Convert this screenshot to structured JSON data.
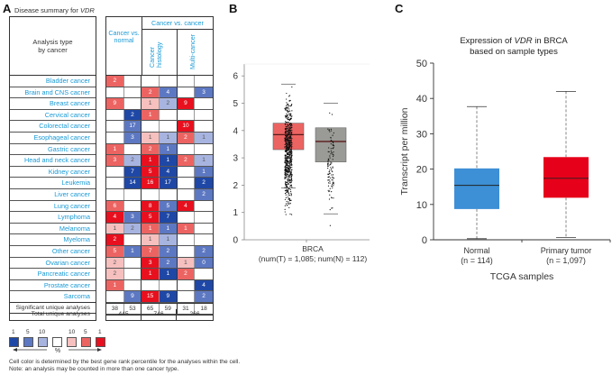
{
  "panels": {
    "a": "A",
    "b": "B",
    "c": "C"
  },
  "panelA": {
    "title_prefix": "Disease summary for ",
    "gene": "VDR",
    "header_left": "Analysis type by cancer",
    "header_cancer_vs_normal": "Cancer vs. normal",
    "header_cancer_vs_cancer": "Cancer vs. cancer",
    "header_cancer_histology": "Cancer histology",
    "header_multi_cancer": "Multi-cancer",
    "colors": {
      "up1": "#e8101e",
      "up5": "#ec6462",
      "up10": "#f6c0bf",
      "none": "#ffffff",
      "down10": "#a8b4e0",
      "down5": "#5d78c2",
      "down1": "#1f48a6"
    },
    "rows": [
      {
        "label": "Bladder cancer",
        "cells": [
          [
            "2",
            "up5"
          ],
          [
            "",
            ""
          ],
          [
            "",
            ""
          ],
          [
            "",
            ""
          ],
          [
            "",
            ""
          ],
          [
            "",
            ""
          ]
        ]
      },
      {
        "label": "Brain and CNS cacner",
        "cells": [
          [
            "",
            ""
          ],
          [
            "",
            ""
          ],
          [
            "2",
            "up5"
          ],
          [
            "4",
            "down5"
          ],
          [
            "",
            ""
          ],
          [
            "3",
            "down5"
          ]
        ]
      },
      {
        "label": "Breast cancer",
        "cells": [
          [
            "9",
            "up5"
          ],
          [
            "",
            ""
          ],
          [
            "1",
            "up10"
          ],
          [
            "2",
            "down10"
          ],
          [
            "9",
            "up1"
          ],
          [
            "",
            ""
          ]
        ]
      },
      {
        "label": "Cervical cancer",
        "cells": [
          [
            "",
            ""
          ],
          [
            "2",
            "down1"
          ],
          [
            "1",
            "up5"
          ],
          [
            "",
            ""
          ],
          [
            "",
            ""
          ],
          [
            "",
            ""
          ]
        ]
      },
      {
        "label": "Colorectal cancer",
        "cells": [
          [
            "",
            ""
          ],
          [
            "17",
            "down5"
          ],
          [
            "",
            ""
          ],
          [
            "",
            ""
          ],
          [
            "10",
            "up1"
          ],
          [
            "",
            ""
          ]
        ]
      },
      {
        "label": "Esophageal cancer",
        "cells": [
          [
            "",
            ""
          ],
          [
            "3",
            "down5"
          ],
          [
            "1",
            "up10"
          ],
          [
            "1",
            "down10"
          ],
          [
            "2",
            "up5"
          ],
          [
            "1",
            "down10"
          ]
        ]
      },
      {
        "label": "Gastric cancer",
        "cells": [
          [
            "1",
            "up5"
          ],
          [
            "",
            ""
          ],
          [
            "2",
            "up5"
          ],
          [
            "1",
            "down5"
          ],
          [
            "",
            ""
          ],
          [
            "",
            ""
          ]
        ]
      },
      {
        "label": "Head and neck cancer",
        "cells": [
          [
            "3",
            "up5"
          ],
          [
            "2",
            "down10"
          ],
          [
            "1",
            "up1"
          ],
          [
            "1",
            "down1"
          ],
          [
            "2",
            "up5"
          ],
          [
            "1",
            "down10"
          ]
        ]
      },
      {
        "label": "Kidney cancer",
        "cells": [
          [
            "",
            ""
          ],
          [
            "7",
            "down1"
          ],
          [
            "5",
            "up1"
          ],
          [
            "4",
            "down1"
          ],
          [
            "",
            ""
          ],
          [
            "1",
            "down5"
          ]
        ]
      },
      {
        "label": "Leukemia",
        "cells": [
          [
            "",
            ""
          ],
          [
            "14",
            "down1"
          ],
          [
            "16",
            "up1"
          ],
          [
            "17",
            "down1"
          ],
          [
            "",
            ""
          ],
          [
            "2",
            "down1"
          ]
        ]
      },
      {
        "label": "Liver cancer",
        "cells": [
          [
            "",
            ""
          ],
          [
            "",
            ""
          ],
          [
            "",
            ""
          ],
          [
            "",
            ""
          ],
          [
            "",
            ""
          ],
          [
            "2",
            "down5"
          ]
        ]
      },
      {
        "label": "Lung cancer",
        "cells": [
          [
            "6",
            "up5"
          ],
          [
            "",
            ""
          ],
          [
            "8",
            "up1"
          ],
          [
            "5",
            "down5"
          ],
          [
            "4",
            "up1"
          ],
          [
            "",
            ""
          ]
        ]
      },
      {
        "label": "Lymphoma",
        "cells": [
          [
            "4",
            "up1"
          ],
          [
            "3",
            "down5"
          ],
          [
            "5",
            "up1"
          ],
          [
            "7",
            "down1"
          ],
          [
            "",
            ""
          ],
          [
            "",
            ""
          ]
        ]
      },
      {
        "label": "Melanoma",
        "cells": [
          [
            "1",
            "up10"
          ],
          [
            "2",
            "down10"
          ],
          [
            "1",
            "up5"
          ],
          [
            "1",
            "down5"
          ],
          [
            "1",
            "up5"
          ],
          [
            "",
            ""
          ]
        ]
      },
      {
        "label": "Myeloma",
        "cells": [
          [
            "2",
            "up1"
          ],
          [
            "",
            ""
          ],
          [
            "1",
            "up10"
          ],
          [
            "1",
            "down10"
          ],
          [
            "",
            ""
          ],
          [
            "",
            ""
          ]
        ]
      },
      {
        "label": "Other cancer",
        "cells": [
          [
            "5",
            "up5"
          ],
          [
            "1",
            "down5"
          ],
          [
            "7",
            "up5"
          ],
          [
            "2",
            "down5"
          ],
          [
            "",
            ""
          ],
          [
            "2",
            "down5"
          ]
        ]
      },
      {
        "label": "Ovarian cancer",
        "cells": [
          [
            "2",
            "up10"
          ],
          [
            "",
            ""
          ],
          [
            "3",
            "up1"
          ],
          [
            "2",
            "down5"
          ],
          [
            "1",
            "up10"
          ],
          [
            "0",
            "down5"
          ]
        ]
      },
      {
        "label": "Pancreatic cancer",
        "cells": [
          [
            "2",
            "up10"
          ],
          [
            "",
            ""
          ],
          [
            "1",
            "up1"
          ],
          [
            "1",
            "down1"
          ],
          [
            "2",
            "up5"
          ],
          [
            "",
            ""
          ]
        ]
      },
      {
        "label": "Prostate cancer",
        "cells": [
          [
            "1",
            "up5"
          ],
          [
            "",
            ""
          ],
          [
            "",
            ""
          ],
          [
            "",
            ""
          ],
          [
            "",
            ""
          ],
          [
            "4",
            "down1"
          ]
        ]
      },
      {
        "label": "Sarcoma",
        "cells": [
          [
            "",
            ""
          ],
          [
            "9",
            "down5"
          ],
          [
            "15",
            "up1"
          ],
          [
            "9",
            "down1"
          ],
          [
            "",
            ""
          ],
          [
            "2",
            "down5"
          ]
        ]
      }
    ],
    "significant_label": "Significant unique analyses",
    "significant_values": [
      "38",
      "53",
      "65",
      "59",
      "31",
      "18"
    ],
    "total_label": "Total unique analyses",
    "total_values": [
      "445",
      "746",
      "266"
    ],
    "legend": {
      "labels": [
        "1",
        "5",
        "10",
        "10",
        "5",
        "1"
      ],
      "percent": "%",
      "swatches": [
        "down1",
        "down5",
        "down10",
        "none",
        "up10",
        "up5",
        "up1"
      ]
    },
    "footnote_1": "Cell color is determined by the best gene rank percentile for the analyses within the cell.",
    "footnote_2": "Note: an analysis may be counted in more than one cancer type."
  },
  "chart_data": [
    {
      "type": "box",
      "panel": "B",
      "title": "",
      "xlabel": "BRCA",
      "xlabel_sub": "(num(T) = 1,085; num(N) = 112)",
      "ylabel": "",
      "ylim": [
        0,
        6.3
      ],
      "yticks": [
        "0",
        "1",
        "2",
        "3",
        "4",
        "5",
        "6"
      ],
      "series": [
        {
          "name": "Tumor",
          "color": "#ec6462",
          "q1": 3.3,
          "median": 3.85,
          "q3": 4.27,
          "whisker_low": 1.9,
          "whisker_high": 5.7,
          "n": 1085
        },
        {
          "name": "Normal",
          "color": "#9a9a96",
          "q1": 2.85,
          "median": 3.6,
          "q3": 4.1,
          "whisker_low": 0.95,
          "whisker_high": 5.0,
          "n": 112
        }
      ]
    },
    {
      "type": "box",
      "panel": "C",
      "title_prefix": "Expression of ",
      "title_gene": "VDR",
      "title_suffix": " in BRCA",
      "title_line2": "based on sample types",
      "xlabel": "TCGA samples",
      "ylabel": "Transcript per million",
      "ylim": [
        0,
        50
      ],
      "yticks": [
        "0",
        "10",
        "20",
        "30",
        "40",
        "50"
      ],
      "categories": [
        "Normal",
        "Primary tumor"
      ],
      "category_n": [
        "(n = 114)",
        "(n = 1,097)"
      ],
      "series": [
        {
          "name": "Normal",
          "color": "#3d8fd6",
          "q1": 8.7,
          "median": 15.4,
          "q3": 20.2,
          "whisker_low": 0.3,
          "whisker_high": 37.7
        },
        {
          "name": "Primary tumor",
          "color": "#e6001a",
          "q1": 11.9,
          "median": 17.4,
          "q3": 23.4,
          "whisker_low": 0.6,
          "whisker_high": 42.0
        }
      ]
    }
  ]
}
